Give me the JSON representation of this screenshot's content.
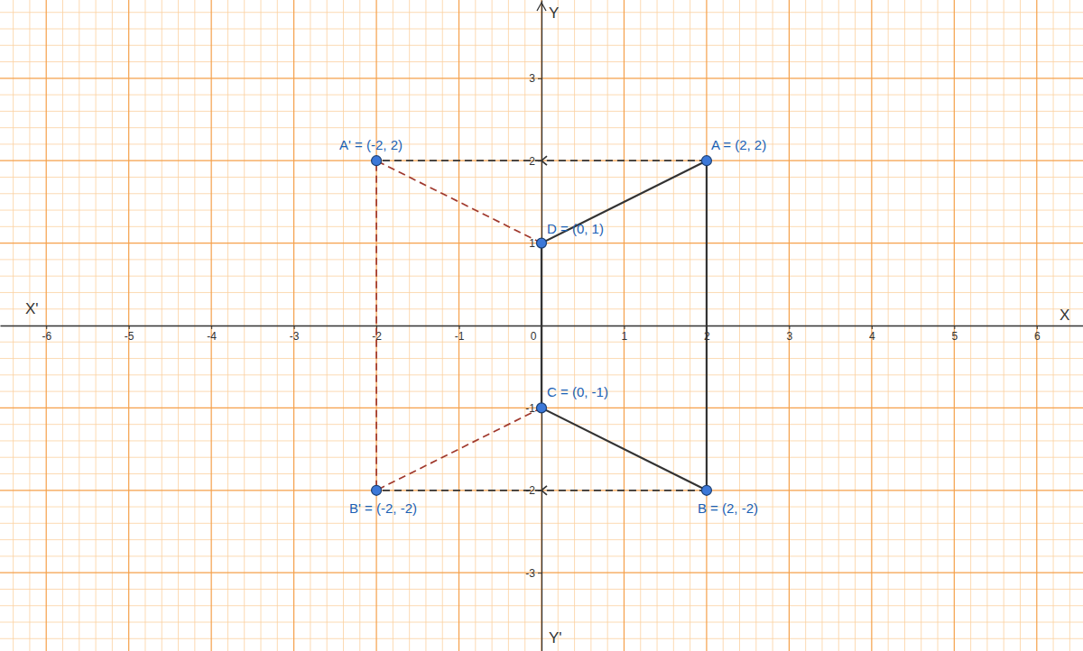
{
  "chart_data": {
    "type": "scatter",
    "x_label": "X",
    "x_label_left": "X'",
    "y_label": "Y",
    "y_label_bottom": "Y'",
    "xlim": [
      -6.56,
      6.56
    ],
    "ylim": [
      -3.95,
      3.95
    ],
    "xticks": [
      -6,
      -5,
      -4,
      -3,
      -2,
      -1,
      0,
      1,
      2,
      3,
      4,
      5,
      6
    ],
    "yticks": [
      -3,
      -2,
      -1,
      1,
      2,
      3
    ],
    "grid": true,
    "series": [
      {
        "type": "line",
        "color": "#333333",
        "line_style": "solid",
        "x": [
          2,
          2,
          0,
          0,
          2
        ],
        "values": [
          2,
          -2,
          -1,
          1,
          2
        ]
      },
      {
        "type": "line",
        "color": "#333333",
        "line_style": "dashed",
        "marker": "arrow",
        "x": [
          2,
          -2
        ],
        "values": [
          2,
          2
        ]
      },
      {
        "type": "line",
        "color": "#333333",
        "line_style": "dashed",
        "marker": "arrow",
        "x": [
          2,
          -2
        ],
        "values": [
          -2,
          -2
        ]
      },
      {
        "type": "line",
        "color": "#a0392d",
        "line_style": "dashed",
        "x": [
          0,
          -2,
          -2,
          0
        ],
        "values": [
          1,
          2,
          -2,
          -1
        ]
      },
      {
        "type": "scatter",
        "color": "#3c78d8",
        "marker": "circle",
        "labels": [
          "A = (2, 2)",
          "B = (2, -2)",
          "C = (0, -1)",
          "D = (0, 1)",
          "A' = (-2, 2)",
          "B' = (-2, -2)"
        ],
        "x": [
          2,
          2,
          0,
          0,
          -2,
          -2
        ],
        "values": [
          2,
          -2,
          -1,
          1,
          2,
          -2
        ]
      }
    ]
  }
}
